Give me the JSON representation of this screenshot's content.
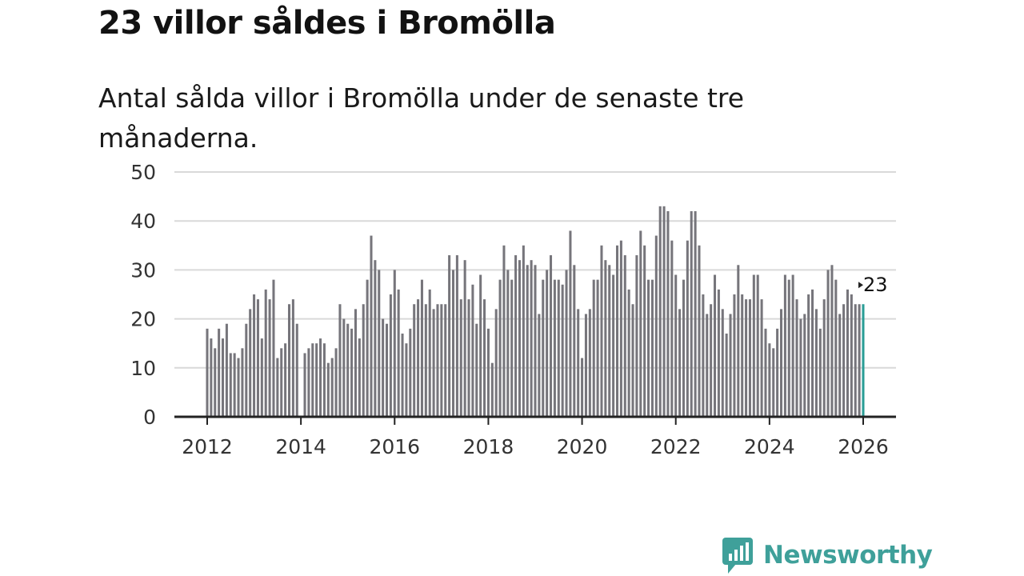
{
  "title": "23 villor såldes i Bromölla",
  "subtitle": "Antal sålda villor i Bromölla under de senaste tre månaderna.",
  "brand": {
    "name": "Newsworthy",
    "color": "#3fa09a"
  },
  "colors": {
    "bar": "#76757b",
    "highlight": "#2a9d96",
    "grid": "#d9d9d9",
    "axis": "#222222"
  },
  "chart_data": {
    "type": "bar",
    "title": "Antal sålda villor i Bromölla under de senaste tre månaderna.",
    "xlabel": "",
    "ylabel": "",
    "ylim": [
      0,
      50
    ],
    "yticks": [
      0,
      10,
      20,
      30,
      40,
      50
    ],
    "xticks": [
      2012,
      2014,
      2016,
      2018,
      2020,
      2022,
      2024,
      2026
    ],
    "xrange": [
      2011.3,
      2026.7
    ],
    "start": {
      "year": 2012,
      "month": 1
    },
    "values": [
      18,
      16,
      14,
      18,
      16,
      19,
      13,
      13,
      12,
      14,
      19,
      22,
      25,
      24,
      16,
      26,
      24,
      28,
      12,
      14,
      15,
      23,
      24,
      19,
      null,
      13,
      14,
      15,
      15,
      16,
      15,
      11,
      12,
      14,
      23,
      20,
      19,
      18,
      22,
      16,
      23,
      28,
      37,
      32,
      30,
      20,
      19,
      25,
      30,
      26,
      17,
      15,
      18,
      23,
      24,
      28,
      23,
      26,
      22,
      23,
      23,
      23,
      33,
      30,
      33,
      24,
      32,
      24,
      27,
      19,
      29,
      24,
      18,
      11,
      22,
      28,
      35,
      30,
      28,
      33,
      32,
      35,
      31,
      32,
      31,
      21,
      28,
      30,
      33,
      28,
      28,
      27,
      30,
      38,
      31,
      22,
      12,
      21,
      22,
      28,
      28,
      35,
      32,
      31,
      29,
      35,
      36,
      33,
      26,
      23,
      33,
      38,
      35,
      28,
      28,
      37,
      43,
      43,
      42,
      36,
      29,
      22,
      28,
      36,
      42,
      42,
      35,
      25,
      21,
      23,
      29,
      26,
      22,
      17,
      21,
      25,
      31,
      25,
      24,
      24,
      29,
      29,
      24,
      18,
      15,
      14,
      18,
      22,
      29,
      28,
      29,
      24,
      20,
      21,
      25,
      26,
      22,
      18,
      24,
      30,
      31,
      28,
      21,
      23,
      26,
      25,
      23,
      23,
      23
    ],
    "last_label": "23"
  }
}
